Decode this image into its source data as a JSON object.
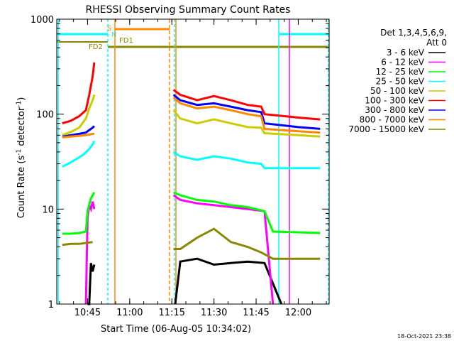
{
  "chart_data": {
    "type": "line",
    "title": "RHESSI Observing Summary Count Rates",
    "xlabel": "Start Time (06-Aug-05 10:34:02)",
    "ylabel_main": "Count Rate (s",
    "ylabel_sup1": "-1",
    "ylabel_mid": " detector",
    "ylabel_sup2": "-1",
    "ylabel_end": ")",
    "yscale": "log",
    "ylim": [
      1,
      1000
    ],
    "xlim_minutes": [
      "10:34:02",
      "12:11"
    ],
    "x_ticks": [
      "10:45",
      "11:00",
      "11:15",
      "11:30",
      "11:45",
      "12:00"
    ],
    "y_ticks": [
      "1",
      "10",
      "100",
      "1000"
    ],
    "legend_header": [
      "Det 1,3,4,5,6,9,",
      "Att 0"
    ],
    "legend_position": "right",
    "footer_timestamp": "18-Oct-2021 23:38",
    "flag_labels": [
      "S",
      "N",
      "FD1",
      "FD2"
    ],
    "colors": {
      "3-6": "#000000",
      "6-12": "#ff00ff",
      "12-25": "#00ff00",
      "25-50": "#00ffff",
      "50-100": "#cccc00",
      "100-300": "#ff0000",
      "300-800": "#0000ff",
      "800-7000": "#ff8800",
      "7000-15000": "#888800"
    },
    "series": [
      {
        "name": "3 - 6 keV",
        "key": "3-6",
        "pre": [
          [
            10.75,
            1
          ],
          [
            10.76,
            1
          ],
          [
            10.77,
            2.7
          ],
          [
            10.78,
            2.2
          ],
          [
            10.79,
            2.6
          ]
        ],
        "post": [
          [
            11.27,
            1
          ],
          [
            11.3,
            2.8
          ],
          [
            11.4,
            3.0
          ],
          [
            11.5,
            2.6
          ],
          [
            11.6,
            2.7
          ],
          [
            11.7,
            2.8
          ],
          [
            11.8,
            2.7
          ],
          [
            11.9,
            1
          ]
        ]
      },
      {
        "name": "6 - 12 keV",
        "key": "6-12",
        "pre": [
          [
            10.74,
            1
          ],
          [
            10.75,
            8
          ],
          [
            10.76,
            11
          ],
          [
            10.77,
            10
          ],
          [
            10.78,
            12
          ],
          [
            10.79,
            10
          ]
        ],
        "post": [
          [
            11.26,
            14
          ],
          [
            11.3,
            12.5
          ],
          [
            11.4,
            11.5
          ],
          [
            11.5,
            11
          ],
          [
            11.6,
            10.5
          ],
          [
            11.7,
            10
          ],
          [
            11.8,
            9.5
          ],
          [
            11.85,
            1
          ]
        ]
      },
      {
        "name": "12 - 25 keV",
        "key": "12-25",
        "pre": [
          [
            10.6,
            5.5
          ],
          [
            10.65,
            5.5
          ],
          [
            10.7,
            5.6
          ],
          [
            10.74,
            5.8
          ],
          [
            10.75,
            9.5
          ],
          [
            10.77,
            13
          ],
          [
            10.79,
            15
          ]
        ],
        "post": [
          [
            11.26,
            15
          ],
          [
            11.3,
            14
          ],
          [
            11.4,
            12.5
          ],
          [
            11.5,
            12
          ],
          [
            11.6,
            11
          ],
          [
            11.7,
            10.5
          ],
          [
            11.8,
            9.5
          ],
          [
            11.85,
            5.8
          ],
          [
            12.0,
            5.7
          ],
          [
            12.13,
            5.6
          ]
        ]
      },
      {
        "name": "25 - 50 keV",
        "key": "25-50",
        "pre": [
          [
            10.6,
            28
          ],
          [
            10.65,
            31
          ],
          [
            10.7,
            35
          ],
          [
            10.73,
            38
          ],
          [
            10.76,
            43
          ],
          [
            10.78,
            48
          ],
          [
            10.79,
            52
          ]
        ],
        "post": [
          [
            11.26,
            40
          ],
          [
            11.3,
            36
          ],
          [
            11.4,
            33
          ],
          [
            11.5,
            36
          ],
          [
            11.6,
            34
          ],
          [
            11.7,
            31
          ],
          [
            11.78,
            30
          ],
          [
            11.8,
            27
          ],
          [
            12.0,
            27
          ],
          [
            12.13,
            27
          ]
        ]
      },
      {
        "name": "50 - 100 keV",
        "key": "50-100",
        "pre": [
          [
            10.6,
            60
          ],
          [
            10.65,
            65
          ],
          [
            10.7,
            72
          ],
          [
            10.74,
            90
          ],
          [
            10.76,
            115
          ],
          [
            10.78,
            140
          ],
          [
            10.79,
            160
          ]
        ],
        "post": [
          [
            11.26,
            110
          ],
          [
            11.3,
            90
          ],
          [
            11.4,
            80
          ],
          [
            11.5,
            88
          ],
          [
            11.6,
            80
          ],
          [
            11.7,
            73
          ],
          [
            11.78,
            72
          ],
          [
            11.8,
            63
          ],
          [
            12.0,
            60
          ],
          [
            12.13,
            58
          ]
        ]
      },
      {
        "name": "100 - 300 keV",
        "key": "100-300",
        "pre": [
          [
            10.6,
            80
          ],
          [
            10.65,
            85
          ],
          [
            10.7,
            95
          ],
          [
            10.74,
            110
          ],
          [
            10.76,
            160
          ],
          [
            10.78,
            250
          ],
          [
            10.79,
            350
          ]
        ],
        "post": [
          [
            11.26,
            180
          ],
          [
            11.3,
            160
          ],
          [
            11.4,
            140
          ],
          [
            11.5,
            155
          ],
          [
            11.6,
            140
          ],
          [
            11.7,
            125
          ],
          [
            11.78,
            120
          ],
          [
            11.8,
            100
          ],
          [
            12.0,
            92
          ],
          [
            12.13,
            88
          ]
        ]
      },
      {
        "name": "300 - 800 keV",
        "key": "300-800",
        "pre": [
          [
            10.6,
            58
          ],
          [
            10.65,
            60
          ],
          [
            10.7,
            62
          ],
          [
            10.74,
            64
          ],
          [
            10.76,
            68
          ],
          [
            10.78,
            72
          ],
          [
            10.79,
            75
          ]
        ],
        "post": [
          [
            11.26,
            160
          ],
          [
            11.3,
            140
          ],
          [
            11.4,
            125
          ],
          [
            11.5,
            130
          ],
          [
            11.6,
            120
          ],
          [
            11.7,
            110
          ],
          [
            11.78,
            105
          ],
          [
            11.8,
            80
          ],
          [
            12.0,
            73
          ],
          [
            12.13,
            70
          ]
        ]
      },
      {
        "name": "800 - 7000 keV",
        "key": "800-7000",
        "pre": [
          [
            10.6,
            57
          ],
          [
            10.65,
            58
          ],
          [
            10.7,
            59
          ],
          [
            10.74,
            60
          ],
          [
            10.76,
            61
          ],
          [
            10.78,
            62
          ],
          [
            10.79,
            62
          ]
        ],
        "post": [
          [
            11.26,
            150
          ],
          [
            11.3,
            130
          ],
          [
            11.4,
            115
          ],
          [
            11.5,
            120
          ],
          [
            11.6,
            110
          ],
          [
            11.7,
            100
          ],
          [
            11.78,
            95
          ],
          [
            11.8,
            70
          ],
          [
            12.0,
            66
          ],
          [
            12.13,
            64
          ]
        ]
      },
      {
        "name": "7000 - 15000 keV",
        "key": "7000-15000",
        "pre": [
          [
            10.6,
            4.2
          ],
          [
            10.65,
            4.3
          ],
          [
            10.7,
            4.3
          ],
          [
            10.74,
            4.4
          ],
          [
            10.78,
            4.5
          ]
        ],
        "post": [
          [
            11.26,
            3.8
          ],
          [
            11.3,
            3.8
          ],
          [
            11.4,
            5.0
          ],
          [
            11.5,
            6.2
          ],
          [
            11.6,
            4.5
          ],
          [
            11.7,
            4.0
          ],
          [
            11.78,
            3.5
          ],
          [
            11.85,
            3.0
          ],
          [
            12.13,
            3.0
          ]
        ]
      }
    ]
  }
}
